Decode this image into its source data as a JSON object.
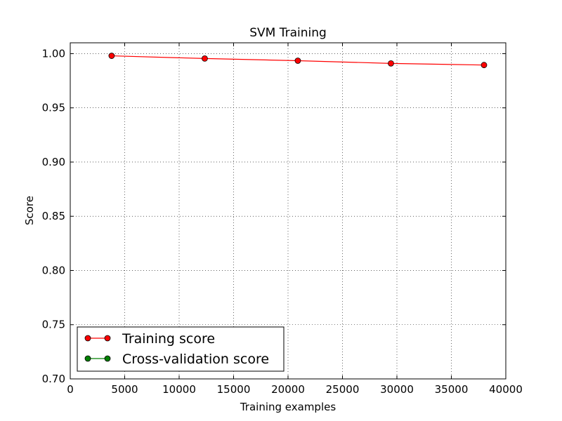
{
  "chart_data": {
    "type": "line",
    "title": "SVM Training",
    "xlabel": "Training examples",
    "ylabel": "Score",
    "xlim": [
      0,
      40000
    ],
    "ylim": [
      0.7,
      1.01
    ],
    "x_ticks": [
      0,
      5000,
      10000,
      15000,
      20000,
      25000,
      30000,
      35000,
      40000
    ],
    "x_tick_labels": [
      "0",
      "5000",
      "10000",
      "15000",
      "20000",
      "25000",
      "30000",
      "35000",
      "40000"
    ],
    "y_ticks": [
      0.7,
      0.75,
      0.8,
      0.85,
      0.9,
      0.95,
      1.0
    ],
    "y_tick_labels": [
      "0.70",
      "0.75",
      "0.80",
      "0.85",
      "0.90",
      "0.95",
      "1.00"
    ],
    "grid": true,
    "legend_position": "bottom-left",
    "series": [
      {
        "name": "Training score",
        "color": "#ff0000",
        "marker": "circle",
        "x": [
          3800,
          12350,
          20900,
          29450,
          38000
        ],
        "y": [
          0.998,
          0.9955,
          0.9935,
          0.991,
          0.9895
        ]
      },
      {
        "name": "Cross-validation score",
        "color": "#008000",
        "marker": "circle",
        "x": [],
        "y": []
      }
    ]
  }
}
